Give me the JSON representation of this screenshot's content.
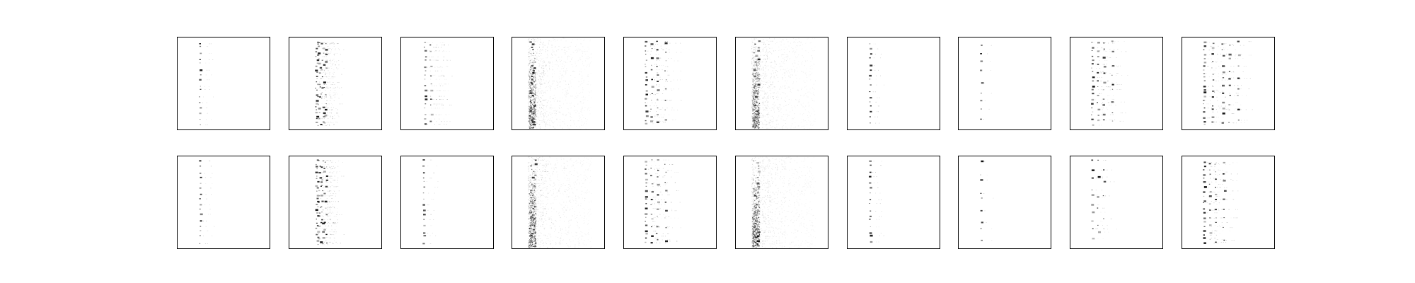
{
  "figure": {
    "background": "#ffffff",
    "frame_color": "#000000",
    "ink_color": "#000000",
    "rows": 2,
    "columns": 10,
    "axis_labels_shown": false,
    "tick_labels_shown": false
  },
  "panels": [
    {
      "row": 1,
      "col": 1,
      "pattern": "single-column-dots"
    },
    {
      "row": 1,
      "col": 2,
      "pattern": "dense-multi-column-dots"
    },
    {
      "row": 1,
      "col": 3,
      "pattern": "column-with-short-tails"
    },
    {
      "row": 1,
      "col": 4,
      "pattern": "diffuse-smear"
    },
    {
      "row": 1,
      "col": 5,
      "pattern": "multi-column-dots"
    },
    {
      "row": 1,
      "col": 6,
      "pattern": "diffuse-smear"
    },
    {
      "row": 1,
      "col": 7,
      "pattern": "single-column-dots"
    },
    {
      "row": 1,
      "col": 8,
      "pattern": "sparse-single-column"
    },
    {
      "row": 1,
      "col": 9,
      "pattern": "multi-column-dots"
    },
    {
      "row": 1,
      "col": 10,
      "pattern": "wide-multi-column-dots"
    },
    {
      "row": 2,
      "col": 1,
      "pattern": "single-column-dots"
    },
    {
      "row": 2,
      "col": 2,
      "pattern": "dense-multi-column-dots"
    },
    {
      "row": 2,
      "col": 3,
      "pattern": "single-column-dots"
    },
    {
      "row": 2,
      "col": 4,
      "pattern": "diffuse-smear"
    },
    {
      "row": 2,
      "col": 5,
      "pattern": "multi-column-dots"
    },
    {
      "row": 2,
      "col": 6,
      "pattern": "diffuse-smear"
    },
    {
      "row": 2,
      "col": 7,
      "pattern": "single-column-dots"
    },
    {
      "row": 2,
      "col": 8,
      "pattern": "sparse-single-column"
    },
    {
      "row": 2,
      "col": 9,
      "pattern": "sparse-multi-column"
    },
    {
      "row": 2,
      "col": 10,
      "pattern": "multi-column-dots"
    }
  ]
}
